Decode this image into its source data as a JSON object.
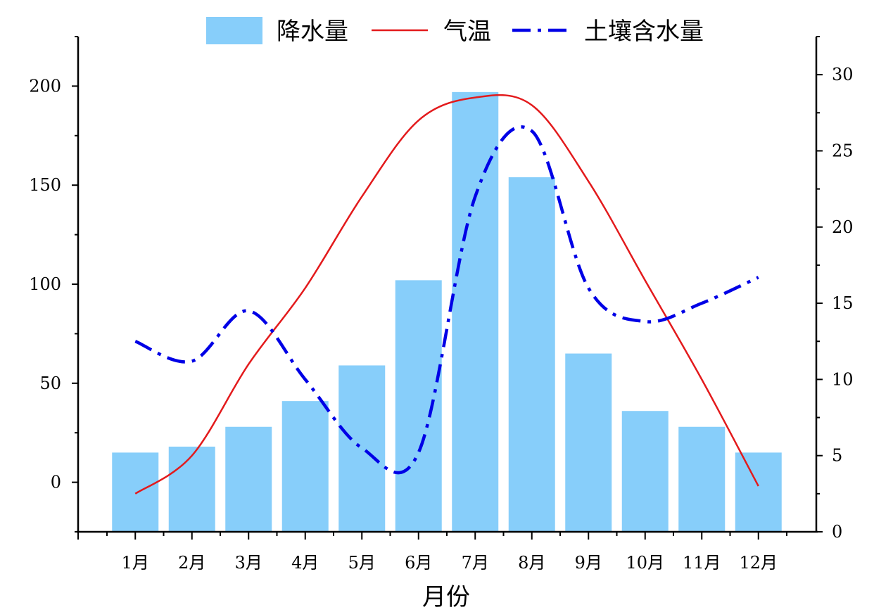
{
  "chart_data": {
    "type": "bar",
    "categories": [
      "1月",
      "2月",
      "3月",
      "4月",
      "5月",
      "6月",
      "7月",
      "8月",
      "9月",
      "10月",
      "11月",
      "12月"
    ],
    "xlabel": "月份",
    "ylabel": "",
    "y2label": "",
    "ylim": [
      -25,
      225
    ],
    "y2lim": [
      0,
      32.5
    ],
    "yticks": [
      0,
      50,
      100,
      150,
      200
    ],
    "y2ticks": [
      0,
      5,
      10,
      15,
      20,
      25,
      30
    ],
    "series": [
      {
        "name": "降水量",
        "type": "bar",
        "axis": "left",
        "color": "#87CEFA",
        "values": [
          15,
          18,
          28,
          41,
          59,
          102,
          197,
          154,
          65,
          36,
          28,
          15
        ]
      },
      {
        "name": "气温",
        "type": "line",
        "axis": "right",
        "color": "#E31A1C",
        "style": "solid",
        "values": [
          2.5,
          5.0,
          11.0,
          16.0,
          22.0,
          27.0,
          28.5,
          28.0,
          23.0,
          16.5,
          10.0,
          3.0
        ]
      },
      {
        "name": "土壤含水量",
        "type": "line",
        "axis": "right",
        "color": "#0000E6",
        "style": "dash-dot",
        "values": [
          12.5,
          11.2,
          14.5,
          10.0,
          5.5,
          5.2,
          22.0,
          26.3,
          16.0,
          13.8,
          15.0,
          16.7
        ]
      }
    ],
    "legend": "top-center",
    "grid": false
  }
}
